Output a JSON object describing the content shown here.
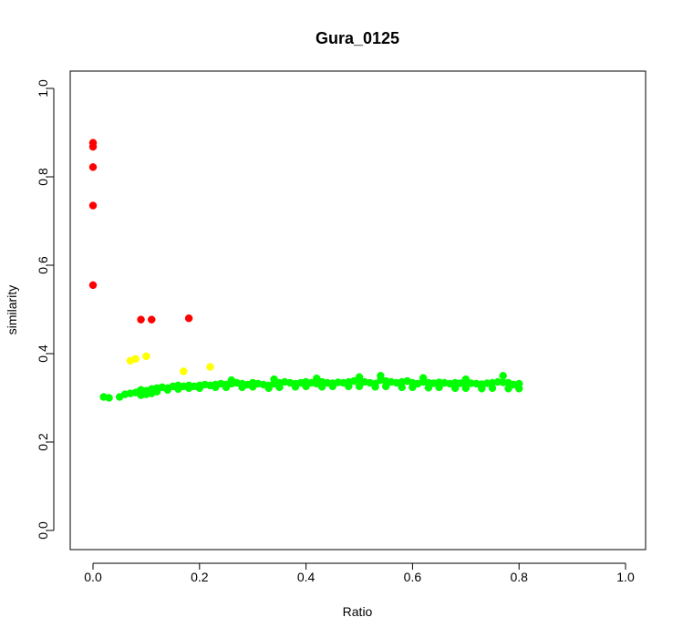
{
  "chart_data": {
    "type": "scatter",
    "title": "Gura_0125",
    "xlabel": "Ratio",
    "ylabel": "similarity",
    "xlim": [
      0.0,
      1.0
    ],
    "ylim": [
      0.0,
      1.0
    ],
    "x_ticks": [
      "0.0",
      "0.2",
      "0.4",
      "0.6",
      "0.8",
      "1.0"
    ],
    "y_ticks": [
      "0.0",
      "0.2",
      "0.4",
      "0.6",
      "0.8",
      "1.0"
    ],
    "grid": false,
    "legend": "none",
    "series": [
      {
        "color": "#ff0000",
        "x": [
          0.0,
          0.0,
          0.0,
          0.0,
          0.0,
          0.09,
          0.11,
          0.18
        ],
        "y": [
          0.877,
          0.868,
          0.822,
          0.735,
          0.555,
          0.477,
          0.477,
          0.48
        ]
      },
      {
        "color": "#ffff00",
        "x": [
          0.07,
          0.08,
          0.1,
          0.17,
          0.22
        ],
        "y": [
          0.384,
          0.388,
          0.394,
          0.36,
          0.37
        ]
      },
      {
        "color": "#00ff00",
        "x": [
          0.02,
          0.03,
          0.05,
          0.06,
          0.07,
          0.08,
          0.09,
          0.1,
          0.11,
          0.12,
          0.13,
          0.14,
          0.15,
          0.16,
          0.17,
          0.18,
          0.19,
          0.2,
          0.21,
          0.22,
          0.23,
          0.24,
          0.25,
          0.26,
          0.27,
          0.28,
          0.29,
          0.3,
          0.31,
          0.32,
          0.33,
          0.34,
          0.35,
          0.36,
          0.37,
          0.38,
          0.39,
          0.4,
          0.41,
          0.42,
          0.43,
          0.44,
          0.45,
          0.46,
          0.47,
          0.48,
          0.49,
          0.5,
          0.51,
          0.52,
          0.53,
          0.54,
          0.55,
          0.56,
          0.57,
          0.58,
          0.59,
          0.6,
          0.61,
          0.62,
          0.63,
          0.64,
          0.65,
          0.66,
          0.67,
          0.68,
          0.69,
          0.7,
          0.71,
          0.72,
          0.73,
          0.74,
          0.75,
          0.76,
          0.77,
          0.78,
          0.79,
          0.8
        ],
        "y": [
          0.302,
          0.3,
          0.302,
          0.308,
          0.31,
          0.312,
          0.318,
          0.316,
          0.32,
          0.322,
          0.324,
          0.322,
          0.326,
          0.328,
          0.326,
          0.328,
          0.326,
          0.328,
          0.33,
          0.328,
          0.33,
          0.332,
          0.33,
          0.332,
          0.334,
          0.332,
          0.33,
          0.334,
          0.332,
          0.33,
          0.328,
          0.332,
          0.334,
          0.336,
          0.334,
          0.332,
          0.334,
          0.336,
          0.334,
          0.332,
          0.336,
          0.334,
          0.333,
          0.335,
          0.334,
          0.336,
          0.338,
          0.34,
          0.336,
          0.334,
          0.332,
          0.34,
          0.338,
          0.336,
          0.334,
          0.336,
          0.338,
          0.334,
          0.332,
          0.336,
          0.334,
          0.333,
          0.335,
          0.334,
          0.332,
          0.334,
          0.333,
          0.331,
          0.333,
          0.332,
          0.331,
          0.333,
          0.334,
          0.336,
          0.335,
          0.334,
          0.33,
          0.332
        ]
      },
      {
        "color": "#00ff00",
        "x": [
          0.09,
          0.1,
          0.11,
          0.12,
          0.14,
          0.16,
          0.18,
          0.2,
          0.23,
          0.25,
          0.28,
          0.3,
          0.33,
          0.35,
          0.38,
          0.4,
          0.43,
          0.45,
          0.48,
          0.5,
          0.53,
          0.55,
          0.58,
          0.6,
          0.63,
          0.65,
          0.68,
          0.7,
          0.73,
          0.75,
          0.78,
          0.8
        ],
        "y": [
          0.306,
          0.308,
          0.31,
          0.314,
          0.318,
          0.32,
          0.322,
          0.322,
          0.324,
          0.324,
          0.324,
          0.325,
          0.322,
          0.324,
          0.325,
          0.326,
          0.325,
          0.326,
          0.326,
          0.326,
          0.325,
          0.326,
          0.324,
          0.324,
          0.323,
          0.324,
          0.322,
          0.322,
          0.321,
          0.322,
          0.321,
          0.321
        ]
      },
      {
        "color": "#00ff00",
        "x": [
          0.26,
          0.34,
          0.42,
          0.5,
          0.54,
          0.62,
          0.7,
          0.77
        ],
        "y": [
          0.34,
          0.342,
          0.344,
          0.347,
          0.35,
          0.345,
          0.342,
          0.35
        ]
      }
    ]
  }
}
